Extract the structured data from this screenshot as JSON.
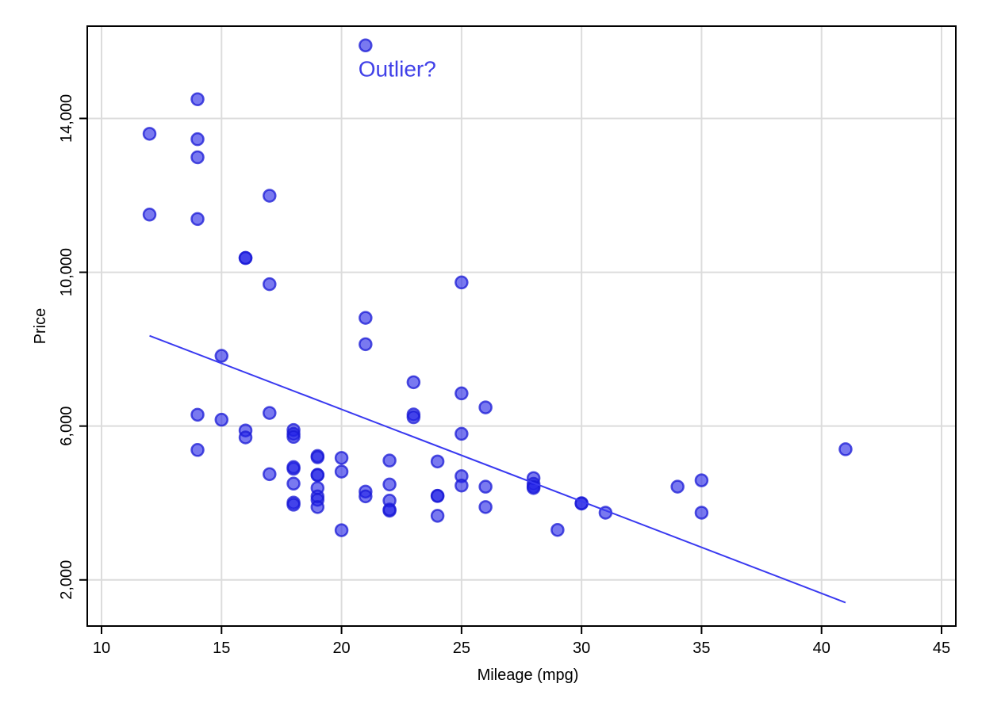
{
  "chart_data": {
    "type": "scatter",
    "xlabel": "Mileage (mpg)",
    "ylabel": "Price",
    "xlim": [
      10,
      45
    ],
    "ylim": [
      800,
      16400
    ],
    "xticks": [
      {
        "value": 10,
        "label": "10"
      },
      {
        "value": 15,
        "label": "15"
      },
      {
        "value": 20,
        "label": "20"
      },
      {
        "value": 25,
        "label": "25"
      },
      {
        "value": 30,
        "label": "30"
      },
      {
        "value": 35,
        "label": "35"
      },
      {
        "value": 40,
        "label": "40"
      },
      {
        "value": 45,
        "label": "45"
      }
    ],
    "yticks": [
      {
        "value": 2000,
        "label": "2,000"
      },
      {
        "value": 6000,
        "label": "6,000"
      },
      {
        "value": 10000,
        "label": "10,000"
      },
      {
        "value": 14000,
        "label": "14,000"
      }
    ],
    "grid": true,
    "colors": {
      "points": "#2020e6",
      "point_outline": "#1a1ad6",
      "fit_line": "#3a3af0",
      "annotation": "#4040e8",
      "grid": "#dcdcdc"
    },
    "points": [
      {
        "x": 21,
        "y": 15900
      },
      {
        "x": 14,
        "y": 14500
      },
      {
        "x": 12,
        "y": 13600
      },
      {
        "x": 14,
        "y": 13460
      },
      {
        "x": 14,
        "y": 12990
      },
      {
        "x": 17,
        "y": 11990
      },
      {
        "x": 12,
        "y": 11500
      },
      {
        "x": 14,
        "y": 11385
      },
      {
        "x": 16,
        "y": 10372
      },
      {
        "x": 16,
        "y": 10371
      },
      {
        "x": 17,
        "y": 9690
      },
      {
        "x": 25,
        "y": 9735
      },
      {
        "x": 21,
        "y": 8814
      },
      {
        "x": 21,
        "y": 8129
      },
      {
        "x": 15,
        "y": 7827
      },
      {
        "x": 23,
        "y": 7140
      },
      {
        "x": 25,
        "y": 6850
      },
      {
        "x": 26,
        "y": 6486
      },
      {
        "x": 17,
        "y": 6342
      },
      {
        "x": 14,
        "y": 6295
      },
      {
        "x": 23,
        "y": 6303
      },
      {
        "x": 23,
        "y": 6229
      },
      {
        "x": 15,
        "y": 6165
      },
      {
        "x": 16,
        "y": 5886
      },
      {
        "x": 18,
        "y": 5899
      },
      {
        "x": 18,
        "y": 5798
      },
      {
        "x": 25,
        "y": 5799
      },
      {
        "x": 16,
        "y": 5705
      },
      {
        "x": 18,
        "y": 5719
      },
      {
        "x": 41,
        "y": 5397
      },
      {
        "x": 14,
        "y": 5379
      },
      {
        "x": 19,
        "y": 5222
      },
      {
        "x": 19,
        "y": 5189
      },
      {
        "x": 20,
        "y": 5172
      },
      {
        "x": 22,
        "y": 5104
      },
      {
        "x": 24,
        "y": 5079
      },
      {
        "x": 18,
        "y": 4890
      },
      {
        "x": 18,
        "y": 4934
      },
      {
        "x": 20,
        "y": 4816
      },
      {
        "x": 17,
        "y": 4749
      },
      {
        "x": 19,
        "y": 4733
      },
      {
        "x": 19,
        "y": 4723
      },
      {
        "x": 25,
        "y": 4697
      },
      {
        "x": 28,
        "y": 4647
      },
      {
        "x": 35,
        "y": 4589
      },
      {
        "x": 28,
        "y": 4499
      },
      {
        "x": 18,
        "y": 4504
      },
      {
        "x": 22,
        "y": 4482
      },
      {
        "x": 25,
        "y": 4453
      },
      {
        "x": 26,
        "y": 4424
      },
      {
        "x": 19,
        "y": 4389
      },
      {
        "x": 28,
        "y": 4425
      },
      {
        "x": 34,
        "y": 4425
      },
      {
        "x": 28,
        "y": 4389
      },
      {
        "x": 21,
        "y": 4296
      },
      {
        "x": 21,
        "y": 4172
      },
      {
        "x": 24,
        "y": 4187
      },
      {
        "x": 24,
        "y": 4181
      },
      {
        "x": 19,
        "y": 4172
      },
      {
        "x": 22,
        "y": 4060
      },
      {
        "x": 19,
        "y": 4082
      },
      {
        "x": 18,
        "y": 4010
      },
      {
        "x": 30,
        "y": 3995
      },
      {
        "x": 30,
        "y": 3984
      },
      {
        "x": 18,
        "y": 3955
      },
      {
        "x": 19,
        "y": 3895
      },
      {
        "x": 26,
        "y": 3895
      },
      {
        "x": 22,
        "y": 3799
      },
      {
        "x": 35,
        "y": 3748
      },
      {
        "x": 22,
        "y": 3829
      },
      {
        "x": 31,
        "y": 3748
      },
      {
        "x": 24,
        "y": 3667
      },
      {
        "x": 20,
        "y": 3291
      },
      {
        "x": 29,
        "y": 3299
      }
    ],
    "fit_line": [
      {
        "x": 12,
        "y": 8350
      },
      {
        "x": 41,
        "y": 1410
      }
    ],
    "annotations": [
      {
        "text": "Outlier?",
        "x": 20.7,
        "y": 15300
      }
    ]
  }
}
